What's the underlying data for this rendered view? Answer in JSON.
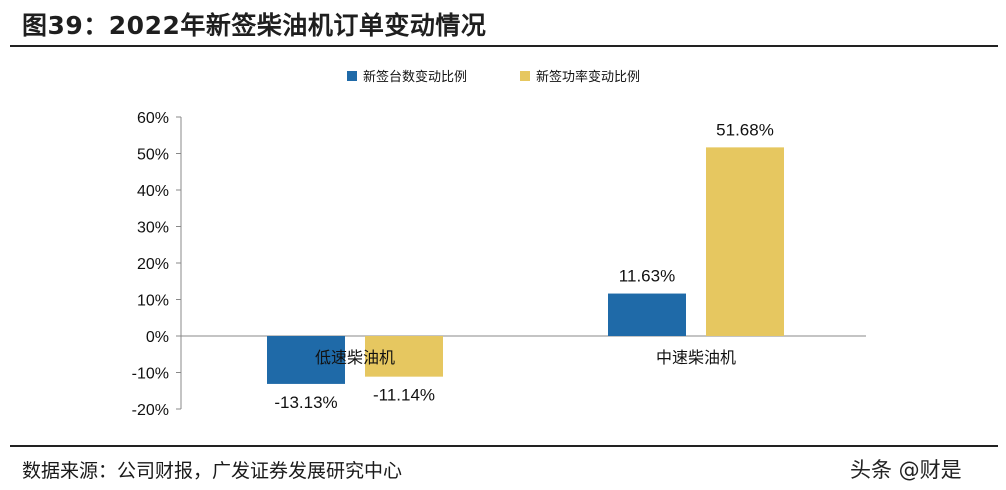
{
  "header": {
    "title": "图39：2022年新签柴油机订单变动情况"
  },
  "footer": {
    "source": "数据来源：公司财报，广发证券发展研究中心",
    "watermark": "头条 @财是"
  },
  "chart_data": {
    "type": "bar",
    "categories": [
      "低速柴油机",
      "中速柴油机"
    ],
    "series": [
      {
        "name": "新签台数变动比例",
        "values": [
          -13.13,
          11.63
        ],
        "labels": [
          "-13.13%",
          "11.63%"
        ],
        "color": "#1F6AA8"
      },
      {
        "name": "新签功率变动比例",
        "values": [
          -11.14,
          51.68
        ],
        "labels": [
          "-11.14%",
          "51.68%"
        ],
        "color": "#E6C760"
      }
    ],
    "ylim": [
      -20,
      60
    ],
    "yticks": [
      60,
      50,
      40,
      30,
      20,
      10,
      0,
      -10,
      -20
    ],
    "ytick_labels": [
      "60%",
      "50%",
      "40%",
      "30%",
      "20%",
      "10%",
      "0%",
      "-10%",
      "-20%"
    ],
    "legend_position": "top-center",
    "grid": false
  }
}
